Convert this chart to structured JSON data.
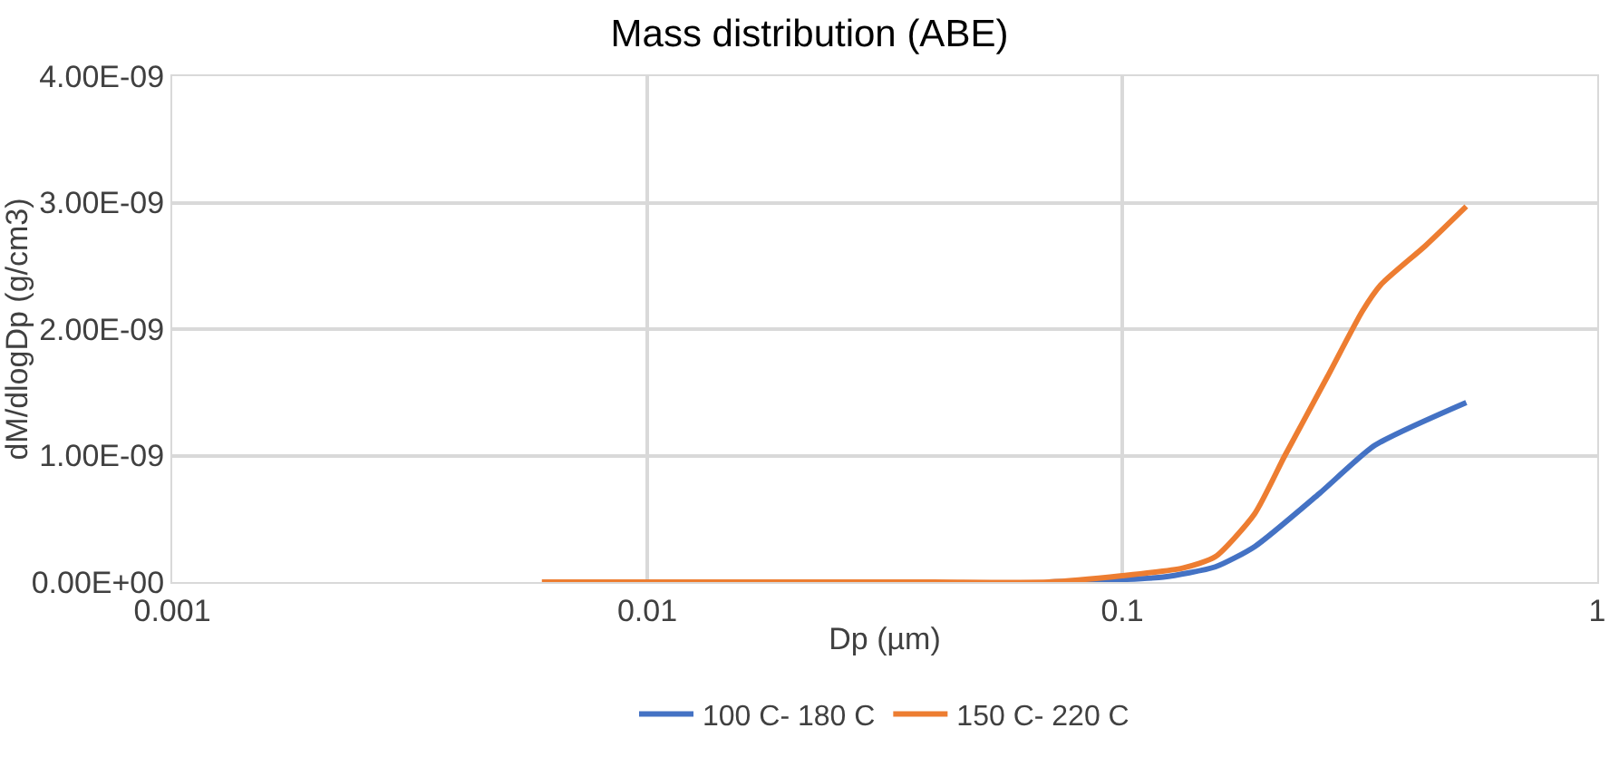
{
  "chart_data": {
    "type": "line",
    "title": "Mass distribution (ABE)",
    "xlabel": "Dp (µm)",
    "ylabel": "dM/dlogDp (g/cm3)",
    "log": "x",
    "xlim": [
      0.001,
      1
    ],
    "xticks": [
      0.001,
      0.01,
      0.1,
      1
    ],
    "ylim": [
      0,
      4e-09
    ],
    "yticks": [
      {
        "value": 0,
        "label": "0.00E+00"
      },
      {
        "value": 1e-09,
        "label": "1.00E-09"
      },
      {
        "value": 2e-09,
        "label": "2.00E-09"
      },
      {
        "value": 3e-09,
        "label": "3.00E-09"
      },
      {
        "value": 4e-09,
        "label": "4.00E-09"
      }
    ],
    "grid": true,
    "legend": "bottom",
    "marker": "none",
    "line_style": "solid",
    "series": [
      {
        "name": "100 C- 180 C",
        "color": "#4472c4",
        "x": [
          0.07,
          0.1,
          0.122,
          0.157,
          0.19,
          0.26,
          0.34,
          0.53
        ],
        "values": [
          0,
          2e-11,
          4e-11,
          1.2e-10,
          2.8e-10,
          7e-10,
          1.08e-09,
          1.42e-09
        ]
      },
      {
        "name": "150 C- 220 C",
        "color": "#ed7d31",
        "x": [
          0.006,
          0.01,
          0.02,
          0.04,
          0.07,
          0.1,
          0.134,
          0.157,
          0.19,
          0.22,
          0.27,
          0.32,
          0.35,
          0.435,
          0.53
        ],
        "values": [
          0,
          0,
          0,
          0,
          0,
          5e-11,
          1.1e-10,
          2e-10,
          5.4e-10,
          1e-09,
          1.62e-09,
          2.14e-09,
          2.35e-09,
          2.66e-09,
          2.97e-09
        ]
      }
    ]
  }
}
